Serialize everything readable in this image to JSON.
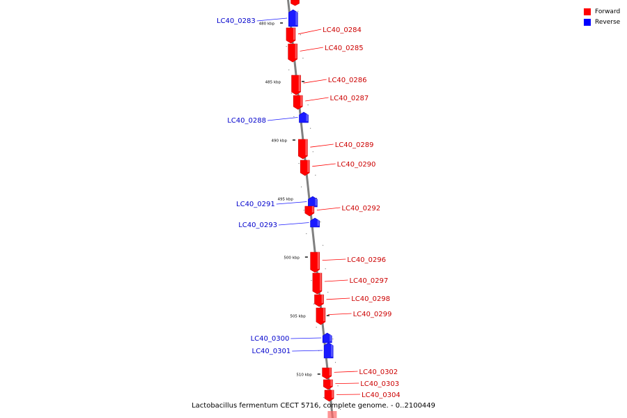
{
  "caption": "Lactobacillus fermentum CECT 5716, complete genome. - 0..2100449",
  "legend": [
    {
      "label": "Forward",
      "color": "#ff0000"
    },
    {
      "label": "Reverse",
      "color": "#0000ff"
    }
  ],
  "colors": {
    "forward": "#ff0000",
    "forward_dark": "#cc0000",
    "forward_light": "#ff6666",
    "reverse": "#1a1aff",
    "reverse_dark": "#0000cc",
    "reverse_light": "#6666ff",
    "backbone": "#808080"
  },
  "tick_labels": [
    "480 kbp",
    "485 kbp",
    "490 kbp",
    "495 kbp",
    "500 kbp",
    "505 kbp",
    "510 kbp"
  ],
  "genes": [
    {
      "id": "LC40_0283",
      "strand": "reverse"
    },
    {
      "id": "LC40_0284",
      "strand": "forward"
    },
    {
      "id": "LC40_0285",
      "strand": "forward"
    },
    {
      "id": "LC40_0286",
      "strand": "forward"
    },
    {
      "id": "LC40_0287",
      "strand": "forward"
    },
    {
      "id": "LC40_0288",
      "strand": "reverse"
    },
    {
      "id": "LC40_0289",
      "strand": "forward"
    },
    {
      "id": "LC40_0290",
      "strand": "forward"
    },
    {
      "id": "LC40_0291",
      "strand": "reverse"
    },
    {
      "id": "LC40_0292",
      "strand": "forward"
    },
    {
      "id": "LC40_0293",
      "strand": "reverse"
    },
    {
      "id": "LC40_0296",
      "strand": "forward"
    },
    {
      "id": "LC40_0297",
      "strand": "forward"
    },
    {
      "id": "LC40_0298",
      "strand": "forward"
    },
    {
      "id": "LC40_0299",
      "strand": "forward"
    },
    {
      "id": "LC40_0300",
      "strand": "reverse"
    },
    {
      "id": "LC40_0301",
      "strand": "reverse"
    },
    {
      "id": "LC40_0302",
      "strand": "forward"
    },
    {
      "id": "LC40_0303",
      "strand": "forward"
    },
    {
      "id": "LC40_0304",
      "strand": "forward"
    }
  ]
}
